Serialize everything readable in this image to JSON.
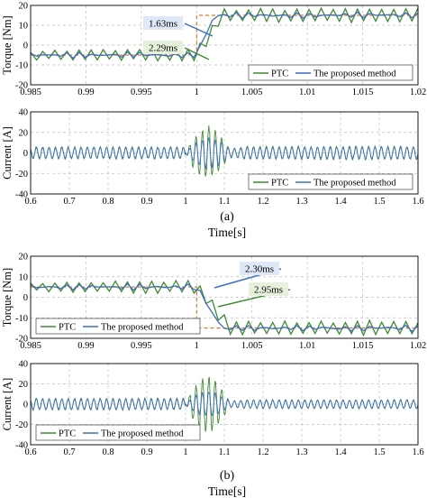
{
  "figure": {
    "panel_labels": [
      "(a)",
      "(b)"
    ],
    "xlabel": "Time[s]"
  },
  "colors": {
    "ptc": "#3f8a32",
    "proposed": "#3c6fc4",
    "reference": "#e07a2a",
    "ann_blue_bg": "#dfe8f7",
    "ann_green_bg": "#e6f1dc"
  },
  "chart_data": [
    {
      "id": "a-torque",
      "type": "line",
      "ylabel": "Torque [Nm]",
      "xlim": [
        0.985,
        1.02
      ],
      "ylim": [
        -20,
        20
      ],
      "xticks": [
        "0.985",
        "0.99",
        "0.995",
        "1",
        "1.005",
        "1.01",
        "1.015",
        "1.02"
      ],
      "yticks": [
        "-20",
        "-10",
        "0",
        "10",
        "20"
      ],
      "grid": true,
      "legend": {
        "position": "bottom-right",
        "entries": [
          "PTC",
          "The proposed method"
        ]
      },
      "annotations": [
        {
          "text": "1.63ms",
          "series": "The proposed method"
        },
        {
          "text": "2.29ms",
          "series": "PTC"
        }
      ],
      "reference": {
        "x": [
          0.985,
          1.0,
          1.0,
          1.02
        ],
        "y": [
          -5,
          -5,
          15,
          15
        ]
      },
      "series": [
        {
          "name": "PTC",
          "kind": "step_ripple",
          "step_time": 1.0,
          "settle_ms": 2.29,
          "y_before": -5,
          "y_after": 15,
          "ripple": 3.5,
          "period": 0.0011
        },
        {
          "name": "The proposed method",
          "kind": "step_ripple",
          "step_time": 1.0,
          "settle_ms": 1.63,
          "y_before": -5,
          "y_after": 15,
          "ripple": 1.5,
          "period": 0.0009
        }
      ]
    },
    {
      "id": "a-current",
      "type": "line",
      "ylabel": "Current [A]",
      "xlim": [
        0.6,
        1.6
      ],
      "ylim": [
        -40,
        40
      ],
      "xticks": [
        "0.6",
        "0.7",
        "0.8",
        "0.9",
        "1",
        "1.1",
        "1.2",
        "1.3",
        "1.4",
        "1.5",
        "1.6"
      ],
      "yticks": [
        "-40",
        "-20",
        "0",
        "20",
        "40"
      ],
      "grid": true,
      "legend": {
        "position": "bottom-right",
        "entries": [
          "PTC",
          "The proposed method"
        ]
      },
      "series": [
        {
          "name": "PTC",
          "kind": "current",
          "amp_before": 5.5,
          "amp_after": 6,
          "transient_peak": 25,
          "transient_start": 1.0,
          "transient_end": 1.16,
          "period": 0.0165
        },
        {
          "name": "The proposed method",
          "kind": "current",
          "amp_before": 5,
          "amp_after": 5.5,
          "transient_peak": 14,
          "transient_start": 1.0,
          "transient_end": 1.16,
          "period": 0.0165
        }
      ]
    },
    {
      "id": "b-torque",
      "type": "line",
      "ylabel": "Torque [Nm]",
      "xlim": [
        0.985,
        1.02
      ],
      "ylim": [
        -20,
        20
      ],
      "xticks": [
        "0.985",
        "0.99",
        "0.995",
        "1",
        "1.005",
        "1.01",
        "1.015",
        "1.02"
      ],
      "yticks": [
        "-20",
        "-10",
        "0",
        "10",
        "20"
      ],
      "grid": true,
      "legend": {
        "position": "bottom-left",
        "entries": [
          "PTC",
          "The proposed method"
        ]
      },
      "annotations": [
        {
          "text": "2.30ms",
          "series": "The proposed method"
        },
        {
          "text": "2.95ms",
          "series": "PTC"
        }
      ],
      "reference": {
        "x": [
          0.985,
          1.0,
          1.0,
          1.02
        ],
        "y": [
          5,
          5,
          -15,
          -15
        ]
      },
      "series": [
        {
          "name": "PTC",
          "kind": "step_ripple",
          "step_time": 1.0,
          "settle_ms": 2.95,
          "y_before": 5,
          "y_after": -15,
          "ripple": 3.5,
          "period": 0.0011
        },
        {
          "name": "The proposed method",
          "kind": "step_ripple",
          "step_time": 1.0,
          "settle_ms": 2.3,
          "y_before": 5,
          "y_after": -15,
          "ripple": 1.5,
          "period": 0.0009
        }
      ]
    },
    {
      "id": "b-current",
      "type": "line",
      "ylabel": "Current [A]",
      "xlim": [
        0.6,
        1.6
      ],
      "ylim": [
        -40,
        40
      ],
      "xticks": [
        "0.6",
        "0.7",
        "0.8",
        "0.9",
        "1",
        "1.1",
        "1.2",
        "1.3",
        "1.4",
        "1.5",
        "1.6"
      ],
      "yticks": [
        "-40",
        "-20",
        "0",
        "20",
        "40"
      ],
      "grid": true,
      "legend": {
        "position": "bottom-left",
        "entries": [
          "PTC",
          "The proposed method"
        ]
      },
      "series": [
        {
          "name": "PTC",
          "kind": "current",
          "amp_before": 5.5,
          "amp_after": 4,
          "transient_peak": 28,
          "transient_start": 1.0,
          "transient_end": 1.16,
          "period": 0.0165
        },
        {
          "name": "The proposed method",
          "kind": "current",
          "amp_before": 5,
          "amp_after": 4,
          "transient_peak": 12,
          "transient_start": 1.0,
          "transient_end": 1.16,
          "period": 0.0165
        }
      ]
    }
  ]
}
